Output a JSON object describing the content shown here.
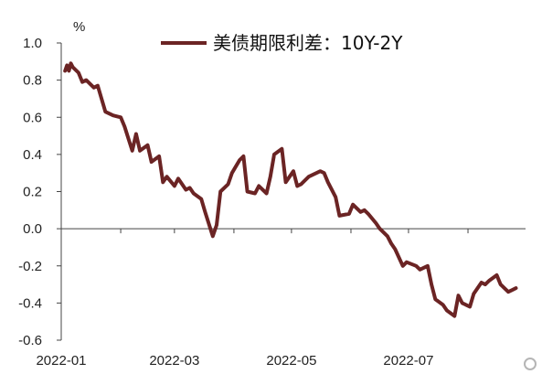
{
  "chart_data": {
    "type": "line",
    "title": "",
    "unit": "%",
    "xlabel": "",
    "ylabel": "",
    "ylim": [
      -0.6,
      1.0
    ],
    "yticks": [
      "1.0",
      "0.8",
      "0.6",
      "0.4",
      "0.2",
      "0.0",
      "-0.2",
      "-0.4",
      "-0.6"
    ],
    "xticks": [
      "2022-01",
      "2022-03",
      "2022-05",
      "2022-07"
    ],
    "legend_position": "top",
    "colors": {
      "line": "#6b2424",
      "axis": "#444444"
    },
    "series": [
      {
        "name": "美债期限利差：10Y-2Y",
        "x": [
          "2022-01-03",
          "2022-01-04",
          "2022-01-05",
          "2022-01-06",
          "2022-01-07",
          "2022-01-10",
          "2022-01-12",
          "2022-01-14",
          "2022-01-18",
          "2022-01-20",
          "2022-01-24",
          "2022-01-26",
          "2022-01-28",
          "2022-02-01",
          "2022-02-03",
          "2022-02-07",
          "2022-02-09",
          "2022-02-11",
          "2022-02-15",
          "2022-02-17",
          "2022-02-21",
          "2022-02-23",
          "2022-02-25",
          "2022-03-01",
          "2022-03-03",
          "2022-03-07",
          "2022-03-09",
          "2022-03-11",
          "2022-03-15",
          "2022-03-17",
          "2022-03-21",
          "2022-03-23",
          "2022-03-25",
          "2022-03-29",
          "2022-03-31",
          "2022-04-04",
          "2022-04-06",
          "2022-04-08",
          "2022-04-12",
          "2022-04-14",
          "2022-04-18",
          "2022-04-20",
          "2022-04-22",
          "2022-04-26",
          "2022-04-28",
          "2022-05-02",
          "2022-05-04",
          "2022-05-06",
          "2022-05-10",
          "2022-05-12",
          "2022-05-16",
          "2022-05-18",
          "2022-05-20",
          "2022-05-24",
          "2022-05-26",
          "2022-05-31",
          "2022-06-02",
          "2022-06-06",
          "2022-06-08",
          "2022-06-10",
          "2022-06-14",
          "2022-06-16",
          "2022-06-20",
          "2022-06-22",
          "2022-06-24",
          "2022-06-28",
          "2022-06-30",
          "2022-07-05",
          "2022-07-07",
          "2022-07-11",
          "2022-07-13",
          "2022-07-15",
          "2022-07-19",
          "2022-07-21",
          "2022-07-25",
          "2022-07-27",
          "2022-07-29",
          "2022-08-02",
          "2022-08-04",
          "2022-08-08",
          "2022-08-10",
          "2022-08-12",
          "2022-08-16",
          "2022-08-18",
          "2022-08-22",
          "2022-08-24",
          "2022-08-26"
        ],
        "values": [
          0.85,
          0.88,
          0.85,
          0.89,
          0.87,
          0.84,
          0.79,
          0.8,
          0.76,
          0.77,
          0.63,
          0.62,
          0.61,
          0.6,
          0.55,
          0.42,
          0.51,
          0.42,
          0.45,
          0.36,
          0.39,
          0.25,
          0.28,
          0.23,
          0.27,
          0.21,
          0.22,
          0.19,
          0.16,
          0.09,
          -0.04,
          0.02,
          0.2,
          0.24,
          0.3,
          0.37,
          0.39,
          0.2,
          0.19,
          0.23,
          0.19,
          0.28,
          0.4,
          0.43,
          0.25,
          0.31,
          0.23,
          0.24,
          0.28,
          0.29,
          0.31,
          0.3,
          0.25,
          0.17,
          0.07,
          0.08,
          0.13,
          0.09,
          0.1,
          0.08,
          0.03,
          0.0,
          -0.04,
          -0.08,
          -0.11,
          -0.2,
          -0.18,
          -0.2,
          -0.22,
          -0.2,
          -0.3,
          -0.38,
          -0.41,
          -0.44,
          -0.47,
          -0.36,
          -0.4,
          -0.42,
          -0.35,
          -0.29,
          -0.3,
          -0.28,
          -0.25,
          -0.3,
          -0.34,
          -0.33,
          -0.32
        ]
      }
    ]
  }
}
